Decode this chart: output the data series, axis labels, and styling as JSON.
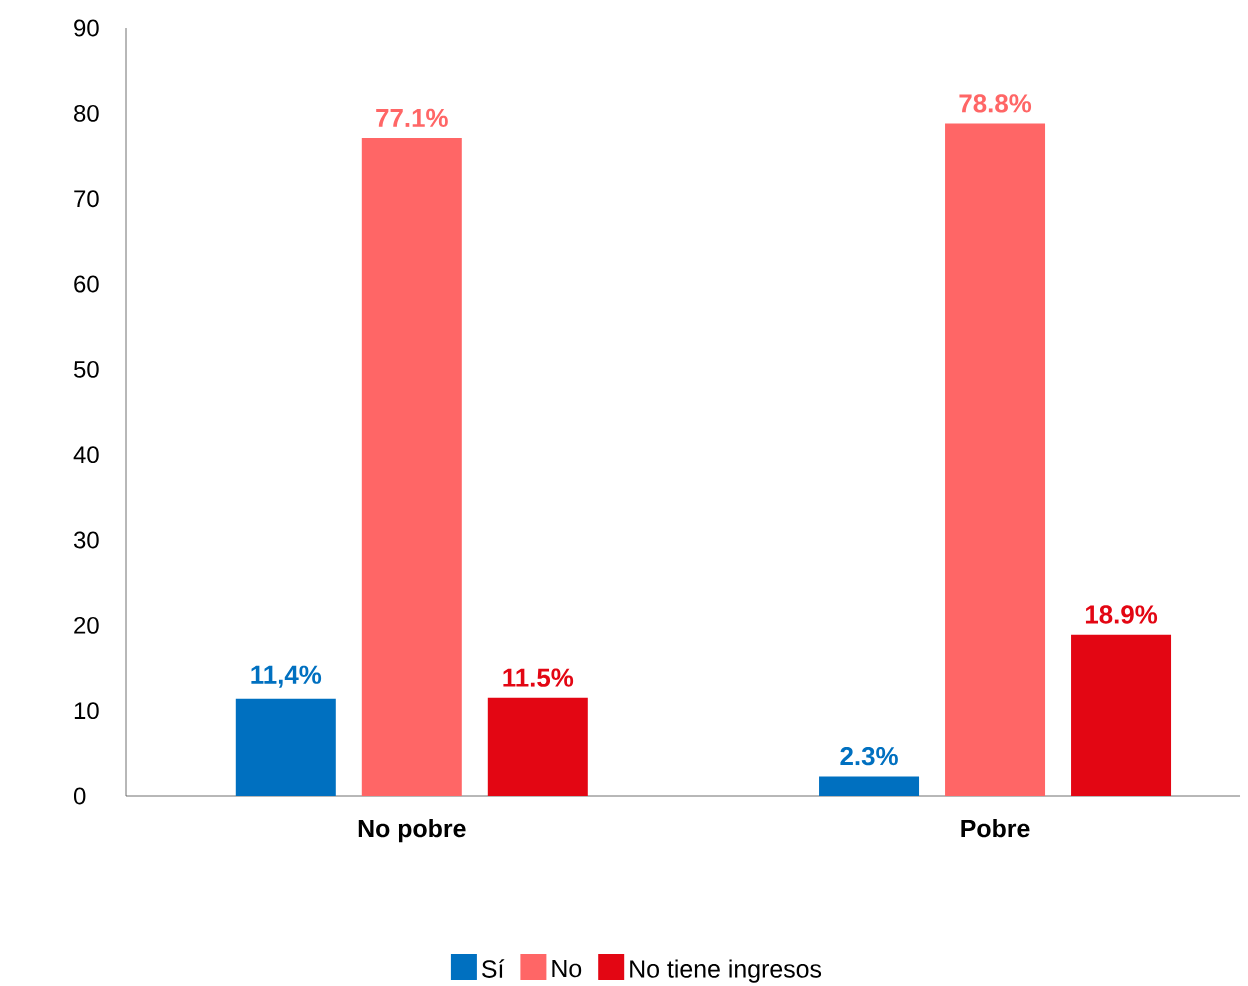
{
  "chart_data": {
    "type": "bar",
    "categories": [
      "No pobre",
      "Pobre"
    ],
    "ylim": [
      0,
      90
    ],
    "yticks": [
      0,
      10,
      20,
      30,
      40,
      50,
      60,
      70,
      80,
      90
    ],
    "grid": false,
    "legend": "bottom",
    "series": [
      {
        "name": "Sí",
        "color": "#0070c0",
        "values": [
          11.4,
          2.3
        ],
        "value_labels": [
          "11,4%",
          "2.3%"
        ]
      },
      {
        "name": "No",
        "color": "#ff6666",
        "values": [
          77.1,
          78.8
        ],
        "value_labels": [
          "77.1%",
          "78.8%"
        ]
      },
      {
        "name": "No tiene ingresos",
        "color": "#e30613",
        "values": [
          11.5,
          18.9
        ],
        "value_labels": [
          "11.5%",
          "18.9%"
        ]
      }
    ]
  }
}
